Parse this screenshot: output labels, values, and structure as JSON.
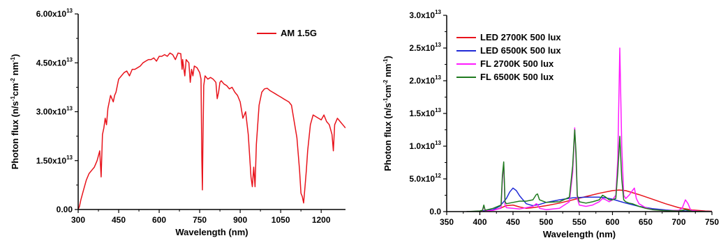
{
  "chart_data": [
    {
      "type": "line",
      "xlabel": "Wavelength (nm)",
      "ylabel": "Photon flux (n/s¹cm² nm¹)",
      "ylabel_parts": [
        "Photon flux (n/s",
        "-1",
        "cm",
        "-2",
        " nm",
        "-1",
        ")"
      ],
      "xlim": [
        300,
        1290
      ],
      "ylim": [
        0,
        60000000000000.0
      ],
      "xticks": [
        300,
        450,
        600,
        750,
        900,
        1050,
        1200
      ],
      "yticks": [
        {
          "value": 0,
          "mantissa": "0.00",
          "exp": ""
        },
        {
          "value": 15000000000000.0,
          "mantissa": "1.50x10",
          "exp": "13"
        },
        {
          "value": 30000000000000.0,
          "mantissa": "3.00x10",
          "exp": "13"
        },
        {
          "value": 45000000000000.0,
          "mantissa": "4.50x10",
          "exp": "13"
        },
        {
          "value": 60000000000000.0,
          "mantissa": "6.00x10",
          "exp": "13"
        }
      ],
      "legend_position": "top-right",
      "series": [
        {
          "name": "AM 1.5G",
          "color": "#e8131b",
          "x": [
            300,
            305,
            310,
            320,
            330,
            340,
            350,
            360,
            370,
            380,
            385,
            390,
            395,
            400,
            405,
            410,
            415,
            420,
            425,
            430,
            435,
            440,
            445,
            450,
            460,
            470,
            480,
            490,
            500,
            510,
            520,
            530,
            540,
            550,
            560,
            570,
            580,
            590,
            600,
            610,
            620,
            630,
            640,
            650,
            660,
            670,
            680,
            685,
            687,
            690,
            695,
            700,
            710,
            715,
            720,
            725,
            730,
            740,
            750,
            755,
            758,
            760,
            762,
            765,
            770,
            780,
            790,
            800,
            810,
            815,
            820,
            825,
            830,
            840,
            850,
            860,
            870,
            880,
            890,
            900,
            910,
            920,
            930,
            940,
            945,
            950,
            955,
            960,
            970,
            980,
            990,
            1000,
            1010,
            1020,
            1030,
            1040,
            1050,
            1060,
            1070,
            1080,
            1090,
            1100,
            1110,
            1120,
            1125,
            1130,
            1135,
            1140,
            1145,
            1150,
            1160,
            1170,
            1180,
            1190,
            1200,
            1210,
            1220,
            1230,
            1240,
            1245,
            1250,
            1260,
            1270,
            1280,
            1290
          ],
          "y": [
            0,
            1000000000000.0,
            3000000000000.0,
            6000000000000.0,
            9000000000000.0,
            11000000000000.0,
            12000000000000.0,
            13000000000000.0,
            15000000000000.0,
            18000000000000.0,
            10000000000000.0,
            23000000000000.0,
            25000000000000.0,
            28000000000000.0,
            26000000000000.0,
            31000000000000.0,
            33000000000000.0,
            35000000000000.0,
            34000000000000.0,
            33000000000000.0,
            35000000000000.0,
            36000000000000.0,
            38000000000000.0,
            40000000000000.0,
            41000000000000.0,
            42000000000000.0,
            42500000000000.0,
            41000000000000.0,
            43000000000000.0,
            43000000000000.0,
            43500000000000.0,
            44000000000000.0,
            45000000000000.0,
            45500000000000.0,
            46000000000000.0,
            46000000000000.0,
            46500000000000.0,
            45500000000000.0,
            47000000000000.0,
            47000000000000.0,
            47500000000000.0,
            47000000000000.0,
            48000000000000.0,
            47500000000000.0,
            46000000000000.0,
            48000000000000.0,
            47800000000000.0,
            43000000000000.0,
            46000000000000.0,
            44000000000000.0,
            41000000000000.0,
            46000000000000.0,
            45000000000000.0,
            39000000000000.0,
            43000000000000.0,
            41000000000000.0,
            44000000000000.0,
            43500000000000.0,
            42000000000000.0,
            40000000000000.0,
            15000000000000.0,
            6000000000000.0,
            20000000000000.0,
            38000000000000.0,
            41000000000000.0,
            40000000000000.0,
            40500000000000.0,
            40000000000000.0,
            39000000000000.0,
            34000000000000.0,
            36000000000000.0,
            39000000000000.0,
            39500000000000.0,
            38500000000000.0,
            38000000000000.0,
            37000000000000.0,
            37500000000000.0,
            36000000000000.0,
            35000000000000.0,
            33000000000000.0,
            28000000000000.0,
            30000000000000.0,
            23000000000000.0,
            10000000000000.0,
            7000000000000.0,
            13000000000000.0,
            7000000000000.0,
            20000000000000.0,
            32000000000000.0,
            36000000000000.0,
            37000000000000.0,
            37200000000000.0,
            36500000000000.0,
            36000000000000.0,
            35500000000000.0,
            35000000000000.0,
            34500000000000.0,
            34000000000000.0,
            33500000000000.0,
            33000000000000.0,
            32000000000000.0,
            27000000000000.0,
            22000000000000.0,
            12000000000000.0,
            5000000000000.0,
            4000000000000.0,
            2000000000000.0,
            7000000000000.0,
            12000000000000.0,
            18000000000000.0,
            26000000000000.0,
            29000000000000.0,
            28500000000000.0,
            28000000000000.0,
            27500000000000.0,
            29000000000000.0,
            27000000000000.0,
            26000000000000.0,
            23000000000000.0,
            18000000000000.0,
            26000000000000.0,
            28000000000000.0,
            27000000000000.0,
            26000000000000.0,
            25000000000000.0
          ]
        }
      ]
    },
    {
      "type": "line",
      "xlabel": "Wavelength (nm)",
      "ylabel": "Photon flux (n/s¹cm² nm¹)",
      "ylabel_parts": [
        "Photon flux (n/s",
        "-1",
        "cm",
        "-2",
        " nm",
        "-1",
        ")"
      ],
      "xlim": [
        350,
        750
      ],
      "ylim": [
        0,
        30000000000000.0
      ],
      "xticks": [
        350,
        400,
        450,
        500,
        550,
        600,
        650,
        700,
        750
      ],
      "yticks": [
        {
          "value": 0,
          "mantissa": "0.0",
          "exp": ""
        },
        {
          "value": 5000000000000.0,
          "mantissa": "5.0x10",
          "exp": "12"
        },
        {
          "value": 10000000000000.0,
          "mantissa": "1.0x10",
          "exp": "13"
        },
        {
          "value": 15000000000000.0,
          "mantissa": "1.5x10",
          "exp": "13"
        },
        {
          "value": 20000000000000.0,
          "mantissa": "2.0x10",
          "exp": "13"
        },
        {
          "value": 25000000000000.0,
          "mantissa": "2.5x10",
          "exp": "13"
        },
        {
          "value": 30000000000000.0,
          "mantissa": "3.0x10",
          "exp": "13"
        }
      ],
      "legend_position": "top-left",
      "series": [
        {
          "name": "LED 2700K 500 lux",
          "color": "#e8131b",
          "x": [
            380,
            400,
            420,
            430,
            440,
            450,
            460,
            470,
            480,
            500,
            520,
            540,
            560,
            580,
            600,
            610,
            620,
            640,
            660,
            680,
            700,
            720,
            740,
            750
          ],
          "y": [
            0,
            20000000000.0,
            200000000000.0,
            500000000000.0,
            900000000000.0,
            1000000000000.0,
            700000000000.0,
            500000000000.0,
            600000000000.0,
            900000000000.0,
            1300000000000.0,
            1800000000000.0,
            2300000000000.0,
            2800000000000.0,
            3200000000000.0,
            3300000000000.0,
            3200000000000.0,
            2600000000000.0,
            1900000000000.0,
            1200000000000.0,
            600000000000.0,
            250000000000.0,
            100000000000.0,
            50000000000.0
          ]
        },
        {
          "name": "LED 6500K 500 lux",
          "color": "#1f2ad6",
          "x": [
            380,
            400,
            420,
            430,
            440,
            445,
            450,
            455,
            460,
            470,
            480,
            490,
            500,
            520,
            540,
            560,
            580,
            590,
            600,
            610,
            620,
            640,
            660,
            680,
            700,
            720,
            740,
            750
          ],
          "y": [
            0,
            50000000000.0,
            300000000000.0,
            800000000000.0,
            2000000000000.0,
            3000000000000.0,
            3600000000000.0,
            3200000000000.0,
            2400000000000.0,
            1200000000000.0,
            900000000000.0,
            1100000000000.0,
            1400000000000.0,
            1800000000000.0,
            2100000000000.0,
            2200000000000.0,
            2200000000000.0,
            2100000000000.0,
            1900000000000.0,
            1600000000000.0,
            1300000000000.0,
            800000000000.0,
            450000000000.0,
            250000000000.0,
            120000000000.0,
            50000000000.0,
            20000000000.0,
            10000000000.0
          ]
        },
        {
          "name": "FL 2700K 500 lux",
          "color": "#ff1aff",
          "x": [
            380,
            400,
            404,
            406,
            408,
            420,
            432,
            434,
            436,
            438,
            440,
            460,
            480,
            485,
            487,
            490,
            500,
            520,
            535,
            540,
            543,
            545,
            547,
            550,
            560,
            570,
            580,
            585,
            590,
            595,
            600,
            605,
            608,
            611,
            614,
            617,
            620,
            625,
            630,
            633,
            636,
            640,
            650,
            660,
            680,
            700,
            705,
            710,
            714,
            718,
            730,
            750
          ],
          "y": [
            0,
            50000000000.0,
            100000000000.0,
            900000000000.0,
            100000000000.0,
            200000000000.0,
            500000000000.0,
            5000000000000.0,
            7200000000000.0,
            1000000000000.0,
            600000000000.0,
            400000000000.0,
            800000000000.0,
            1200000000000.0,
            1100000000000.0,
            500000000000.0,
            300000000000.0,
            500000000000.0,
            1500000000000.0,
            6000000000000.0,
            12800000000000.0,
            8000000000000.0,
            2000000000000.0,
            1000000000000.0,
            800000000000.0,
            1000000000000.0,
            1500000000000.0,
            2000000000000.0,
            1800000000000.0,
            1500000000000.0,
            1800000000000.0,
            2500000000000.0,
            8000000000000.0,
            25000000000000.0,
            10000000000000.0,
            2500000000000.0,
            2000000000000.0,
            2500000000000.0,
            3200000000000.0,
            3600000000000.0,
            2000000000000.0,
            1200000000000.0,
            600000000000.0,
            300000000000.0,
            150000000000.0,
            200000000000.0,
            500000000000.0,
            1800000000000.0,
            1200000000000.0,
            200000000000.0,
            50000000000.0,
            20000000000.0
          ]
        },
        {
          "name": "FL 6500K 500 lux",
          "color": "#1e7a1e",
          "x": [
            380,
            400,
            404,
            406,
            408,
            420,
            432,
            434,
            436,
            438,
            440,
            450,
            460,
            470,
            480,
            485,
            487,
            490,
            500,
            520,
            535,
            540,
            543,
            545,
            547,
            550,
            560,
            570,
            580,
            585,
            590,
            595,
            600,
            605,
            608,
            611,
            614,
            617,
            620,
            625,
            630,
            640,
            650,
            660,
            680,
            700,
            710,
            720,
            750
          ],
          "y": [
            0,
            100000000000.0,
            200000000000.0,
            1000000000000.0,
            200000000000.0,
            500000000000.0,
            1000000000000.0,
            5500000000000.0,
            7600000000000.0,
            1500000000000.0,
            1200000000000.0,
            1400000000000.0,
            1600000000000.0,
            1600000000000.0,
            1800000000000.0,
            2600000000000.0,
            2700000000000.0,
            1800000000000.0,
            1400000000000.0,
            1500000000000.0,
            2200000000000.0,
            7000000000000.0,
            12500000000000.0,
            9000000000000.0,
            2500000000000.0,
            1500000000000.0,
            1300000000000.0,
            1500000000000.0,
            1800000000000.0,
            2500000000000.0,
            2200000000000.0,
            1800000000000.0,
            1800000000000.0,
            2000000000000.0,
            6000000000000.0,
            11500000000000.0,
            5000000000000.0,
            1800000000000.0,
            1500000000000.0,
            1300000000000.0,
            1200000000000.0,
            800000000000.0,
            500000000000.0,
            300000000000.0,
            150000000000.0,
            100000000000.0,
            300000000000.0,
            50000000000.0,
            0.0
          ]
        }
      ]
    }
  ]
}
